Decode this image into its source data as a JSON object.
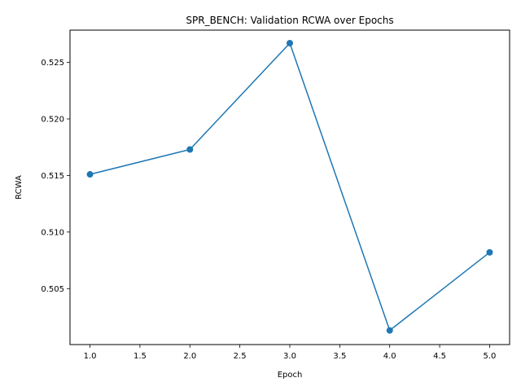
{
  "chart_data": {
    "type": "line",
    "title": "SPR_BENCH: Validation RCWA over Epochs",
    "xlabel": "Epoch",
    "ylabel": "RCWA",
    "x": [
      1,
      2,
      3,
      4,
      5
    ],
    "series": [
      {
        "values": [
          0.5151,
          0.5173,
          0.5267,
          0.5013,
          0.5082
        ],
        "color": "#1f77b4",
        "marker": "circle"
      }
    ],
    "xlim": [
      0.8,
      5.2
    ],
    "ylim": [
      0.50005,
      0.52785
    ],
    "xticks": [
      "1.0",
      "1.5",
      "2.0",
      "2.5",
      "3.0",
      "3.5",
      "4.0",
      "4.5",
      "5.0"
    ],
    "yticks": [
      "0.505",
      "0.510",
      "0.515",
      "0.520",
      "0.525"
    ],
    "grid": false,
    "legend": "none"
  }
}
